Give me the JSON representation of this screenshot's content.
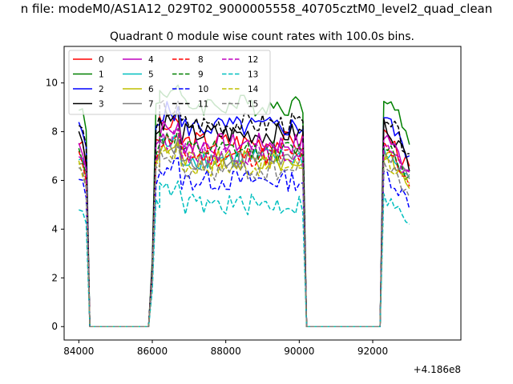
{
  "figure": {
    "suptitle": "n file: modeM0/AS1A12_029T02_9000005558_40705cztM0_level2_quad_clean",
    "title": "Quadrant 0 module wise count rates with 100.0s bins.",
    "offset_label": "+4.186e8"
  },
  "chart_data": {
    "type": "line",
    "title": "Quadrant 0 module wise count rates with 100.0s bins.",
    "xlabel": "",
    "ylabel": "",
    "x_offset": 418600000,
    "xlim": [
      83600,
      94400
    ],
    "ylim": [
      -0.55,
      11.5
    ],
    "xticks": [
      84000,
      86000,
      88000,
      90000,
      92000
    ],
    "xtick_labels": [
      "84000",
      "86000",
      "88000",
      "90000",
      "92000"
    ],
    "yticks": [
      0,
      2,
      4,
      6,
      8,
      10
    ],
    "ytick_labels": [
      "0",
      "2",
      "4",
      "6",
      "8",
      "10"
    ],
    "grid": false,
    "legend_position": "top-left",
    "legend_columns": 4,
    "legend_labels": [
      "0",
      "1",
      "2",
      "3",
      "4",
      "5",
      "6",
      "7",
      "8",
      "9",
      "10",
      "11",
      "12",
      "13",
      "14",
      "15"
    ],
    "segments": [
      {
        "x_start": 84000,
        "x_end": 84300,
        "x_step": 100,
        "shape": [
          1.0,
          0.97,
          0.88,
          0.0
        ]
      },
      {
        "x_start": 84300,
        "x_end": 85900,
        "x_step": 100,
        "shape": "zero"
      },
      {
        "x_start": 85900,
        "x_end": 86200,
        "x_step": 100,
        "shape": [
          0.0,
          0.3,
          1.0,
          1.02
        ]
      },
      {
        "x_start": 86200,
        "x_end": 90100,
        "x_step": 100,
        "shape": "plateau"
      },
      {
        "x_start": 90100,
        "x_end": 90500,
        "x_step": 100,
        "shape": [
          0.95,
          0.0
        ]
      },
      {
        "x_start": 90500,
        "x_end": 92200,
        "x_step": 100,
        "shape": "zero"
      },
      {
        "x_start": 92200,
        "x_end": 93000,
        "x_step": 100,
        "shape": "late"
      }
    ],
    "series": [
      {
        "name": "0",
        "color": "#ff0000",
        "dash": "solid",
        "level": 7.6
      },
      {
        "name": "1",
        "color": "#008000",
        "dash": "solid",
        "level": 9.1
      },
      {
        "name": "2",
        "color": "#0000ff",
        "dash": "solid",
        "level": 8.2
      },
      {
        "name": "3",
        "color": "#000000",
        "dash": "solid",
        "level": 7.9
      },
      {
        "name": "4",
        "color": "#bf00bf",
        "dash": "solid",
        "level": 7.5
      },
      {
        "name": "5",
        "color": "#00bfbf",
        "dash": "solid",
        "level": 6.9
      },
      {
        "name": "6",
        "color": "#bfbf00",
        "dash": "solid",
        "level": 6.8
      },
      {
        "name": "7",
        "color": "#808080",
        "dash": "solid",
        "level": 6.9
      },
      {
        "name": "8",
        "color": "#ff0000",
        "dash": "dashed",
        "level": 7.0
      },
      {
        "name": "9",
        "color": "#008000",
        "dash": "dashed",
        "level": 7.2
      },
      {
        "name": "10",
        "color": "#0000ff",
        "dash": "dashed",
        "level": 6.0
      },
      {
        "name": "11",
        "color": "#000000",
        "dash": "dashed",
        "level": 8.3
      },
      {
        "name": "12",
        "color": "#bf00bf",
        "dash": "dashed",
        "level": 7.1
      },
      {
        "name": "13",
        "color": "#00bfbf",
        "dash": "dashed",
        "level": 5.0
      },
      {
        "name": "14",
        "color": "#bfbf00",
        "dash": "dashed",
        "level": 6.6
      },
      {
        "name": "15",
        "color": "#808080",
        "dash": "dashed",
        "level": 6.4
      }
    ]
  }
}
